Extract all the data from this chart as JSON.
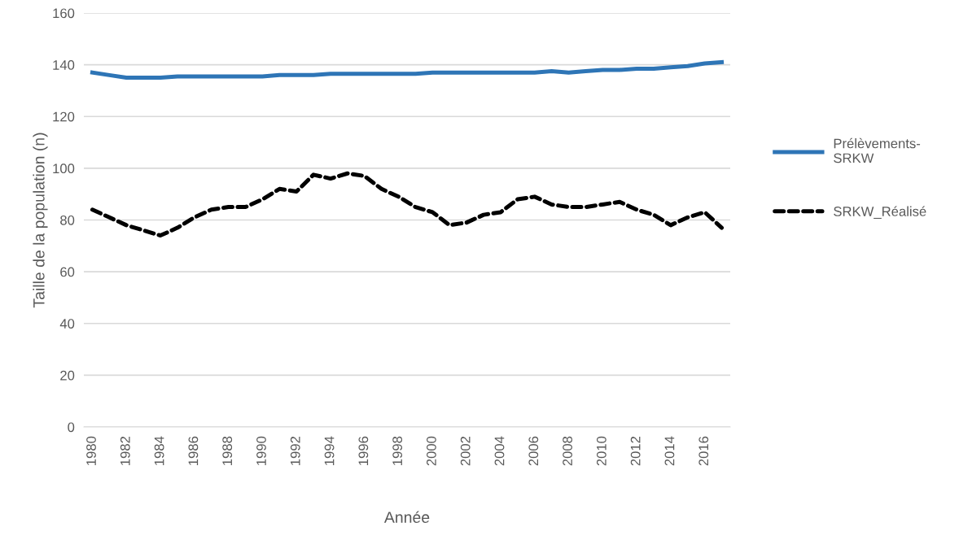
{
  "chart_data": {
    "type": "line",
    "xlabel": "Année",
    "ylabel": "Taille de la population (n)",
    "categories": [
      "1980",
      null,
      "1982",
      null,
      "1984",
      null,
      "1986",
      null,
      "1988",
      null,
      "1990",
      null,
      "1992",
      null,
      "1994",
      null,
      "1996",
      null,
      "1998",
      null,
      "2000",
      null,
      "2002",
      null,
      "2004",
      null,
      "2006",
      null,
      "2008",
      null,
      "2010",
      null,
      "2012",
      null,
      "2014",
      null,
      "2016",
      null
    ],
    "series": [
      {
        "name": "Prélèvements-SRKW",
        "color": "#2e75b6",
        "line_style": "solid",
        "values": [
          137,
          136,
          135,
          135,
          135,
          135.5,
          135.5,
          135.5,
          135.5,
          135.5,
          135.5,
          136,
          136,
          136,
          136.5,
          136.5,
          136.5,
          136.5,
          136.5,
          136.5,
          137,
          137,
          137,
          137,
          137,
          137,
          137,
          137.5,
          137,
          137.5,
          138,
          138,
          138.5,
          138.5,
          139,
          139.5,
          140.5,
          141
        ]
      },
      {
        "name": "SRKW_Réalisé",
        "color": "#000000",
        "line_style": "dashed",
        "values": [
          84,
          81,
          78,
          76,
          74,
          77,
          81,
          84,
          85,
          85,
          88,
          92,
          91,
          97.5,
          96,
          98,
          97,
          92,
          89,
          85,
          83,
          78,
          79,
          82,
          83,
          88,
          89,
          86,
          85,
          85,
          86,
          87,
          84,
          82,
          78,
          81,
          83,
          77
        ]
      }
    ],
    "ylim": [
      0,
      160
    ],
    "yticks": [
      0,
      20,
      40,
      60,
      80,
      100,
      120,
      140,
      160
    ],
    "grid": "y",
    "legend": "right",
    "marker": "none"
  }
}
